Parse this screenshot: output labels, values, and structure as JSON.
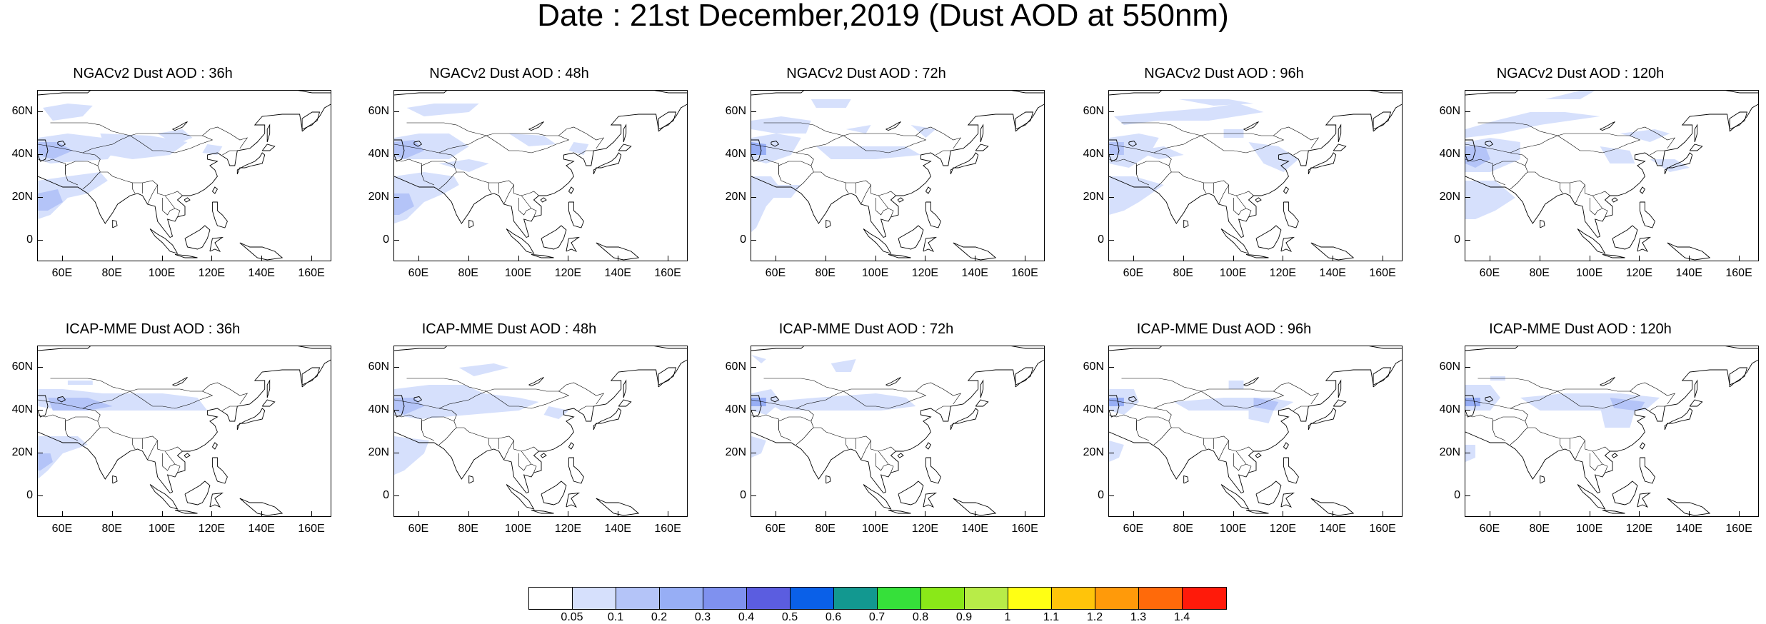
{
  "title": "Date : 21st December,2019 (Dust AOD at 550nm)",
  "panels": [
    {
      "title": "NGACv2 Dust AOD : 36h"
    },
    {
      "title": "NGACv2 Dust AOD : 48h"
    },
    {
      "title": "NGACv2 Dust AOD : 72h"
    },
    {
      "title": "NGACv2 Dust AOD : 96h"
    },
    {
      "title": "NGACv2 Dust AOD : 120h"
    },
    {
      "title": "ICAP-MME Dust AOD : 36h"
    },
    {
      "title": "ICAP-MME Dust AOD : 48h"
    },
    {
      "title": "ICAP-MME Dust AOD : 72h"
    },
    {
      "title": "ICAP-MME Dust AOD : 96h"
    },
    {
      "title": "ICAP-MME Dust AOD : 120h"
    }
  ],
  "axes": {
    "lat_ticks": [
      "60N",
      "40N",
      "20N",
      "0"
    ],
    "lon_ticks": [
      "60E",
      "80E",
      "100E",
      "120E",
      "140E",
      "160E"
    ]
  },
  "colorbar": {
    "labels": [
      "0.05",
      "0.1",
      "0.2",
      "0.3",
      "0.4",
      "0.5",
      "0.6",
      "0.7",
      "0.8",
      "0.9",
      "1",
      "1.1",
      "1.2",
      "1.3",
      "1.4"
    ],
    "colors": [
      "#ffffff",
      "#d6e0fc",
      "#b4c4f8",
      "#97aef5",
      "#7f91ef",
      "#5b5de0",
      "#0a60e8",
      "#129890",
      "#36e03a",
      "#8ae818",
      "#b8ec48",
      "#ffff14",
      "#ffc40a",
      "#ff9a0a",
      "#ff6a0a",
      "#ff1a0a"
    ]
  }
}
